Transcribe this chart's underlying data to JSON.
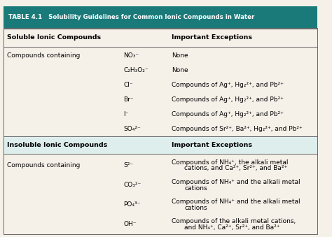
{
  "title": "TABLE 4.1   Solubility Guidelines for Common Ionic Compounds in Water",
  "header_bg": "#1a7a7a",
  "header_text_color": "#ffffff",
  "bg_color": "#f5f0e8",
  "border_color": "#888888",
  "figsize": [
    4.74,
    3.39
  ],
  "dpi": 100,
  "sections": [
    {
      "type": "subheader",
      "col1": "Soluble Ionic Compounds",
      "col2": "Important Exceptions"
    },
    {
      "type": "divider"
    },
    {
      "type": "row",
      "col0": "Compounds containing",
      "col1": "NO₃⁻",
      "col2": "None",
      "multiline": false
    },
    {
      "type": "row",
      "col0": "",
      "col1": "C₂H₃O₂⁻",
      "col2": "None",
      "multiline": false
    },
    {
      "type": "row",
      "col0": "",
      "col1": "Cl⁻",
      "col2": "Compounds of Ag⁺, Hg₂²⁺, and Pb²⁺",
      "multiline": false
    },
    {
      "type": "row",
      "col0": "",
      "col1": "Br⁻",
      "col2": "Compounds of Ag⁺, Hg₂²⁺, and Pb²⁺",
      "multiline": false
    },
    {
      "type": "row",
      "col0": "",
      "col1": "I⁻",
      "col2": "Compounds of Ag⁺, Hg₂²⁺, and Pb²⁺",
      "multiline": false
    },
    {
      "type": "row",
      "col0": "",
      "col1": "SO₄²⁻",
      "col2": "Compounds of Sr²⁺, Ba²⁺, Hg₂²⁺, and Pb²⁺",
      "multiline": false
    },
    {
      "type": "section_header",
      "col1": "Insoluble Ionic Compounds",
      "col2": "Important Exceptions"
    },
    {
      "type": "divider"
    },
    {
      "type": "row",
      "col0": "Compounds containing",
      "col1": "S²⁻",
      "col2": "Compounds of NH₄⁺, the alkali metal\ncations, and Ca²⁺, Sr²⁺, and Ba²⁺",
      "multiline": true
    },
    {
      "type": "row",
      "col0": "",
      "col1": "CO₃²⁻",
      "col2": "Compounds of NH₄⁺ and the alkali metal\ncations",
      "multiline": true
    },
    {
      "type": "row",
      "col0": "",
      "col1": "PO₄³⁻",
      "col2": "Compounds of NH₄⁺ and the alkali metal\ncations",
      "multiline": true
    },
    {
      "type": "row",
      "col0": "",
      "col1": "OH⁻",
      "col2": "Compounds of the alkali metal cations,\nand NH₄⁺, Ca²⁺, Sr²⁺, and Ba²⁺",
      "multiline": true
    }
  ]
}
